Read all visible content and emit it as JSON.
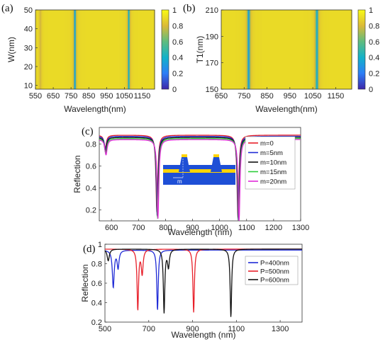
{
  "chart_data": [
    {
      "panel": "(a)",
      "type": "heatmap",
      "xlabel": "Wavelength(nm)",
      "ylabel": "W(nm)",
      "xlim": [
        550,
        1220
      ],
      "ylim": [
        8,
        50
      ],
      "xticks": [
        550,
        650,
        750,
        850,
        950,
        1050,
        1150
      ],
      "yticks": [
        10,
        20,
        30,
        40,
        50
      ],
      "colorbar": {
        "range": [
          0,
          1
        ],
        "ticks": [
          0,
          0.2,
          0.4,
          0.6,
          0.8,
          1
        ],
        "colors": [
          "#3e26a8",
          "#2c7ef7",
          "#12b2c9",
          "#5fbc7f",
          "#dbba37",
          "#f9fb15"
        ]
      },
      "background_value": 0.9,
      "dips": [
        {
          "center": 578,
          "width": 6,
          "depth": 0.12
        },
        {
          "center": 772,
          "width": 4,
          "depth": 0.65
        },
        {
          "center": 1075,
          "width": 4,
          "depth": 0.55
        }
      ]
    },
    {
      "panel": "(b)",
      "type": "heatmap",
      "xlabel": "Wavelength(nm)",
      "ylabel": "T1(nm)",
      "xlim": [
        650,
        1220
      ],
      "ylim": [
        150,
        210
      ],
      "xticks": [
        650,
        750,
        850,
        950,
        1050,
        1150
      ],
      "yticks": [
        150,
        170,
        190,
        210
      ],
      "colorbar": {
        "range": [
          0,
          1
        ],
        "ticks": [
          0,
          0.2,
          0.4,
          0.6,
          0.8,
          1
        ],
        "colors": [
          "#3e26a8",
          "#2c7ef7",
          "#12b2c9",
          "#5fbc7f",
          "#dbba37",
          "#f9fb15"
        ]
      },
      "background_value": 0.9,
      "dips": [
        {
          "center": 770,
          "width": 4,
          "depth": 0.65
        },
        {
          "center": 1068,
          "width": 4,
          "depth": 0.6
        }
      ]
    },
    {
      "panel": "(c)",
      "type": "line",
      "xlabel": "Wavelength (nm)",
      "ylabel": "Reflection",
      "xlim": [
        555,
        1300
      ],
      "ylim": [
        0.1,
        0.95
      ],
      "xticks": [
        600,
        700,
        800,
        900,
        1000,
        1100,
        1200,
        1300
      ],
      "yticks": [
        0.2,
        0.4,
        0.6,
        0.8
      ],
      "inset_label": "m",
      "series": [
        {
          "name": "m=0",
          "color": "#e8202a",
          "base": 0.88,
          "dips": [
            {
              "c": 577,
              "w": 5,
              "d": 0.12
            },
            {
              "c": 768,
              "w": 4,
              "d": 0.7
            },
            {
              "c": 1068,
              "w": 4,
              "d": 0.75
            }
          ]
        },
        {
          "name": "m=5nm",
          "color": "#1f2bd6",
          "base": 0.87,
          "dips": [
            {
              "c": 578,
              "w": 5,
              "d": 0.12
            },
            {
              "c": 769,
              "w": 4,
              "d": 0.72
            },
            {
              "c": 1069,
              "w": 4,
              "d": 0.76
            }
          ]
        },
        {
          "name": "m=10nm",
          "color": "#111111",
          "base": 0.86,
          "dips": [
            {
              "c": 578,
              "w": 5,
              "d": 0.13
            },
            {
              "c": 770,
              "w": 4,
              "d": 0.72
            },
            {
              "c": 1070,
              "w": 4,
              "d": 0.76
            }
          ]
        },
        {
          "name": "m=15nm",
          "color": "#2ccc3a",
          "base": 0.85,
          "dips": [
            {
              "c": 579,
              "w": 5,
              "d": 0.14
            },
            {
              "c": 771,
              "w": 4,
              "d": 0.73
            },
            {
              "c": 1071,
              "w": 4,
              "d": 0.77
            }
          ]
        },
        {
          "name": "m=20nm",
          "color": "#e02ad8",
          "base": 0.84,
          "dips": [
            {
              "c": 580,
              "w": 5,
              "d": 0.14
            },
            {
              "c": 772,
              "w": 4,
              "d": 0.72
            },
            {
              "c": 1072,
              "w": 4,
              "d": 0.76
            }
          ]
        }
      ]
    },
    {
      "panel": "(d)",
      "type": "line",
      "xlabel": "Wavelength (nm)",
      "ylabel": "Reflection",
      "xlim": [
        500,
        1400
      ],
      "ylim": [
        0.2,
        1.0
      ],
      "xticks": [
        500,
        700,
        900,
        1100,
        1300
      ],
      "yticks": [
        0.2,
        0.4,
        0.6,
        0.8,
        1
      ],
      "series": [
        {
          "name": "P=400nm",
          "color": "#1f2bd6",
          "base": 0.94,
          "dips": [
            {
              "c": 538,
              "w": 5,
              "d": 0.38
            },
            {
              "c": 560,
              "w": 5,
              "d": 0.18
            },
            {
              "c": 740,
              "w": 4,
              "d": 0.62
            }
          ]
        },
        {
          "name": "P=500nm",
          "color": "#e8202a",
          "base": 0.95,
          "dips": [
            {
              "c": 650,
              "w": 4,
              "d": 0.62
            },
            {
              "c": 670,
              "w": 5,
              "d": 0.25
            },
            {
              "c": 905,
              "w": 4,
              "d": 0.65
            }
          ]
        },
        {
          "name": "P=600nm",
          "color": "#111111",
          "base": 0.95,
          "dips": [
            {
              "c": 515,
              "w": 6,
              "d": 0.12
            },
            {
              "c": 770,
              "w": 4,
              "d": 0.65
            },
            {
              "c": 790,
              "w": 5,
              "d": 0.18
            },
            {
              "c": 1075,
              "w": 4,
              "d": 0.7
            }
          ]
        }
      ]
    }
  ]
}
